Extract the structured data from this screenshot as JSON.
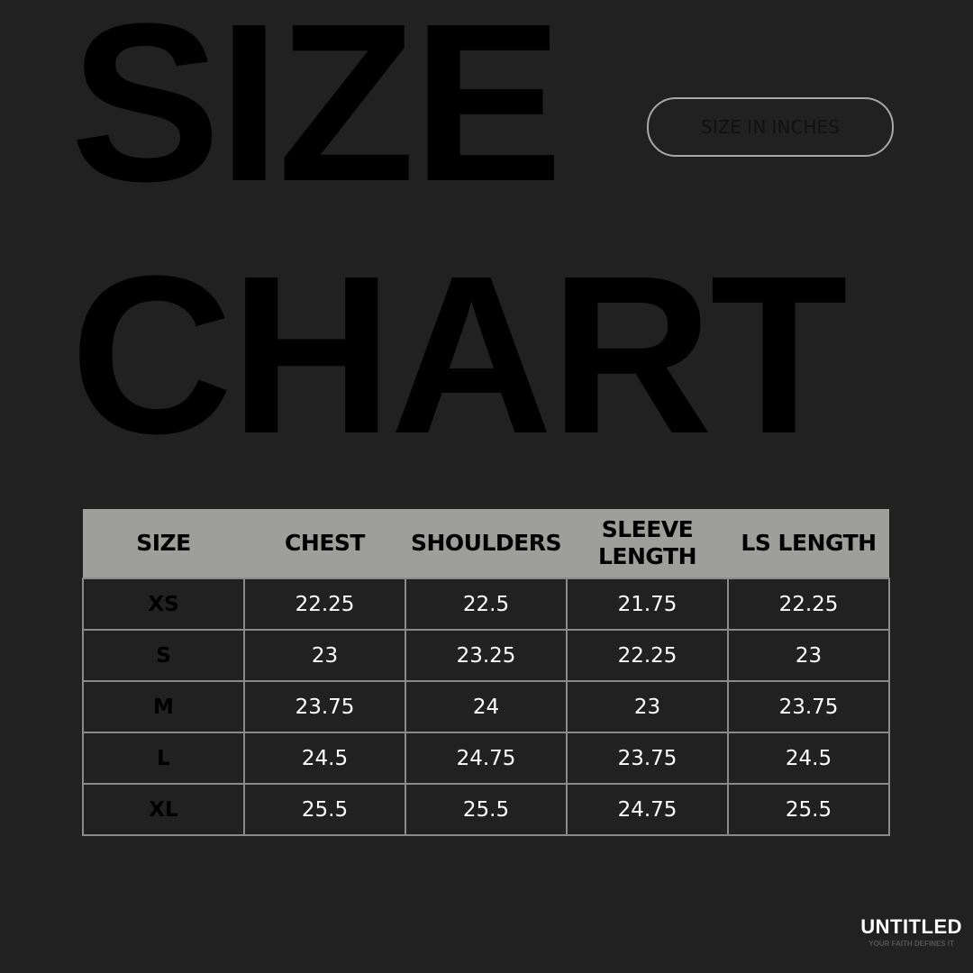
{
  "title": {
    "line1": "SIZE",
    "line2": "CHART"
  },
  "unit_badge": "SIZE IN INCHES",
  "table": {
    "headers": [
      "SIZE",
      "CHEST",
      "SHOULDERS",
      "SLEEVE LENGTH",
      "LS LENGTH"
    ],
    "rows": [
      [
        "XS",
        "22.25",
        "22.5",
        "21.75",
        "22.25"
      ],
      [
        "S",
        "23",
        "23.25",
        "22.25",
        "23"
      ],
      [
        "M",
        "23.75",
        "24",
        "23",
        "23.75"
      ],
      [
        "L",
        "24.5",
        "24.75",
        "23.75",
        "24.5"
      ],
      [
        "XL",
        "25.5",
        "25.5",
        "24.75",
        "25.5"
      ]
    ]
  },
  "brand": {
    "name": "UNTITLED",
    "tagline": "YOUR FAITH DEFINES IT"
  },
  "colors": {
    "background": "#212121",
    "header": "#9e9e9c",
    "border": "#8a8a8a",
    "title": "#000000"
  }
}
